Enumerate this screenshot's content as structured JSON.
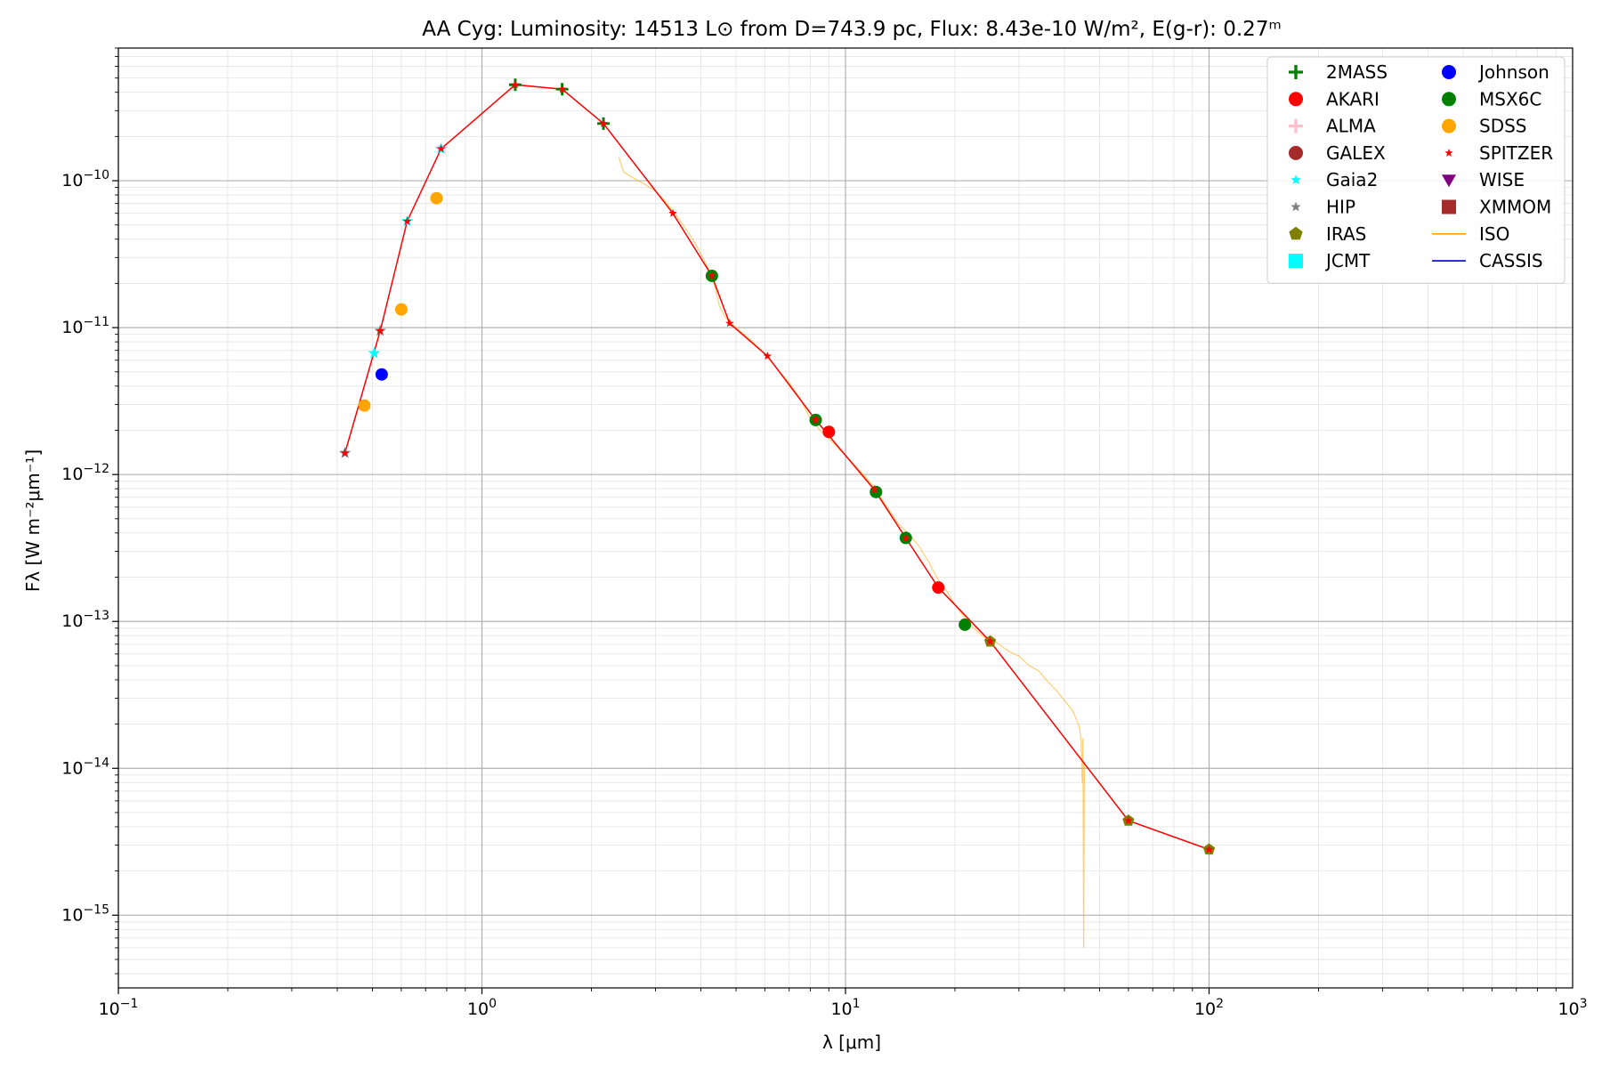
{
  "chart_data": {
    "type": "scatter",
    "title": "AA Cyg:  Luminosity: 14513 L⊙ from D=743.9 pc, Flux: 8.43e-10 W/m², E(g-r): 0.27ᵐ",
    "xlabel": "λ [μm]",
    "ylabel": "Fλ [W m⁻²μm⁻¹]",
    "xscale": "log",
    "yscale": "log",
    "xlim": [
      0.1,
      1000
    ],
    "ylim": [
      3.2e-16,
      8e-10
    ],
    "grid": true,
    "legend_position": "top-right",
    "legend_columns": 2,
    "x_ticks": [
      {
        "value": 0.1,
        "mant": "10",
        "exp": "−1"
      },
      {
        "value": 1,
        "mant": "10",
        "exp": "0"
      },
      {
        "value": 10,
        "mant": "10",
        "exp": "1"
      },
      {
        "value": 100,
        "mant": "10",
        "exp": "2"
      },
      {
        "value": 1000,
        "mant": "10",
        "exp": "3"
      }
    ],
    "y_ticks": [
      {
        "value": 1e-15,
        "mant": "10",
        "exp": "−15"
      },
      {
        "value": 1e-14,
        "mant": "10",
        "exp": "−14"
      },
      {
        "value": 1e-13,
        "mant": "10",
        "exp": "−13"
      },
      {
        "value": 1e-12,
        "mant": "10",
        "exp": "−12"
      },
      {
        "value": 1e-11,
        "mant": "10",
        "exp": "−11"
      },
      {
        "value": 1e-10,
        "mant": "10",
        "exp": "−10"
      }
    ],
    "series": [
      {
        "name": "2MASS",
        "marker": "plus",
        "color": "#008000",
        "points": [
          [
            1.235,
            4.5e-10
          ],
          [
            1.662,
            4.2e-10
          ],
          [
            2.159,
            2.45e-10
          ]
        ]
      },
      {
        "name": "AKARI",
        "marker": "circle",
        "color": "#ff0000",
        "points": [
          [
            9.0,
            1.95e-12
          ],
          [
            18.0,
            1.7e-13
          ]
        ]
      },
      {
        "name": "ALMA",
        "marker": "plus",
        "color": "#ffc0cb",
        "points": []
      },
      {
        "name": "GALEX",
        "marker": "circle",
        "color": "#a52a2a",
        "points": []
      },
      {
        "name": "Gaia2",
        "marker": "star",
        "color": "#00ffff",
        "points": [
          [
            0.505,
            6.7e-12
          ],
          [
            0.623,
            5.3e-11
          ],
          [
            0.772,
            1.65e-10
          ]
        ]
      },
      {
        "name": "HIP",
        "marker": "star",
        "color": "#808080",
        "points": [
          [
            0.42,
            1.4e-12
          ],
          [
            0.525,
            9.5e-12
          ]
        ]
      },
      {
        "name": "IRAS",
        "marker": "pentagon",
        "color": "#808000",
        "points": [
          [
            25,
            7.3e-14
          ],
          [
            60,
            4.4e-15
          ],
          [
            100,
            2.8e-15
          ]
        ]
      },
      {
        "name": "JCMT",
        "marker": "square",
        "color": "#00ffff",
        "points": []
      },
      {
        "name": "Johnson",
        "marker": "circle",
        "color": "#0000ff",
        "points": [
          [
            0.53,
            4.8e-12
          ]
        ]
      },
      {
        "name": "MSX6C",
        "marker": "circle",
        "color": "#008000",
        "points": [
          [
            4.29,
            2.25e-11
          ],
          [
            8.28,
            2.35e-12
          ],
          [
            12.13,
            7.6e-13
          ],
          [
            14.65,
            3.7e-13
          ],
          [
            21.3,
            9.5e-14
          ]
        ]
      },
      {
        "name": "SDSS",
        "marker": "circle",
        "color": "#ffa500",
        "points": [
          [
            0.475,
            2.95e-12
          ],
          [
            0.6,
            1.33e-11
          ],
          [
            0.75,
            7.6e-11
          ]
        ]
      },
      {
        "name": "SPITZER",
        "marker": "star",
        "color": "#ff0000",
        "points": [
          [
            0.42,
            1.4e-12
          ],
          [
            0.525,
            9.5e-12
          ],
          [
            0.623,
            5.3e-11
          ],
          [
            0.772,
            1.65e-10
          ],
          [
            1.235,
            4.5e-10
          ],
          [
            1.662,
            4.2e-10
          ],
          [
            2.159,
            2.45e-10
          ],
          [
            3.35,
            6e-11
          ],
          [
            4.29,
            2.25e-11
          ],
          [
            4.8,
            1.07e-11
          ],
          [
            6.1,
            6.4e-12
          ],
          [
            8.28,
            2.35e-12
          ],
          [
            12.0,
            7.9e-13
          ],
          [
            14.65,
            3.7e-13
          ],
          [
            18.0,
            1.7e-13
          ],
          [
            25,
            7.3e-14
          ],
          [
            60,
            4.4e-15
          ],
          [
            100,
            2.8e-15
          ]
        ]
      },
      {
        "name": "WISE",
        "marker": "triangle-down",
        "color": "#800080",
        "points": []
      },
      {
        "name": "XMMOM",
        "marker": "square",
        "color": "#a52a2a",
        "points": []
      },
      {
        "name": "ISO",
        "marker": "line",
        "color": "#ffa500",
        "points": [
          [
            2.38,
            1.45e-10
          ],
          [
            2.45,
            1.15e-10
          ],
          [
            2.6,
            1.05e-10
          ],
          [
            2.8,
            9.5e-11
          ],
          [
            3.0,
            8.5e-11
          ],
          [
            3.2,
            7.2e-11
          ],
          [
            3.5,
            5.4e-11
          ],
          [
            3.8,
            4e-11
          ],
          [
            4.0,
            3.2e-11
          ],
          [
            4.2,
            2.5e-11
          ],
          [
            4.35,
            2e-11
          ],
          [
            4.5,
            1.4e-11
          ],
          [
            4.7,
            1.15e-11
          ],
          [
            5.0,
            1e-11
          ],
          [
            5.5,
            8.2e-12
          ],
          [
            6.0,
            6.6e-12
          ],
          [
            6.5,
            5.2e-12
          ],
          [
            7.0,
            4.2e-12
          ],
          [
            7.5,
            3.3e-12
          ],
          [
            8.0,
            2.4e-12
          ],
          [
            8.5,
            2e-12
          ],
          [
            9.0,
            1.75e-12
          ],
          [
            10.0,
            1.35e-12
          ],
          [
            11.0,
            1.05e-12
          ],
          [
            12.0,
            8.2e-13
          ],
          [
            13.0,
            6e-13
          ],
          [
            14.0,
            4.6e-13
          ],
          [
            15.0,
            3.9e-13
          ],
          [
            16.0,
            3.2e-13
          ],
          [
            17.0,
            2.5e-13
          ],
          [
            18.0,
            1.9e-13
          ],
          [
            19.0,
            1.6e-13
          ],
          [
            20.0,
            1.3e-13
          ],
          [
            22.0,
            9.5e-14
          ],
          [
            24.0,
            7.8e-14
          ],
          [
            26.0,
            7.2e-14
          ],
          [
            28.0,
            6.3e-14
          ],
          [
            30.0,
            5.8e-14
          ],
          [
            32.0,
            5e-14
          ],
          [
            34.0,
            4.6e-14
          ],
          [
            36.0,
            3.9e-14
          ],
          [
            38.0,
            3.4e-14
          ],
          [
            40.0,
            2.9e-14
          ],
          [
            42.0,
            2.5e-14
          ],
          [
            43.0,
            2.2e-14
          ],
          [
            44.0,
            1.9e-14
          ],
          [
            44.5,
            1.5e-14
          ],
          [
            44.8,
            8e-15
          ],
          [
            45.0,
            1.6e-14
          ],
          [
            45.2,
            6e-16
          ],
          [
            45.4,
            1.1e-14
          ]
        ]
      },
      {
        "name": "CASSIS",
        "marker": "line",
        "color": "#0000cd",
        "points": []
      }
    ],
    "sed_line": {
      "color": "#ff0000",
      "points": [
        [
          0.42,
          1.4e-12
        ],
        [
          0.525,
          9.5e-12
        ],
        [
          0.623,
          5.3e-11
        ],
        [
          0.772,
          1.65e-10
        ],
        [
          1.235,
          4.5e-10
        ],
        [
          1.662,
          4.2e-10
        ],
        [
          2.159,
          2.45e-10
        ],
        [
          3.35,
          6e-11
        ],
        [
          4.29,
          2.25e-11
        ],
        [
          4.8,
          1.07e-11
        ],
        [
          6.1,
          6.4e-12
        ],
        [
          8.28,
          2.35e-12
        ],
        [
          12.0,
          7.9e-13
        ],
        [
          14.65,
          3.7e-13
        ],
        [
          18.0,
          1.7e-13
        ],
        [
          25,
          7.3e-14
        ],
        [
          60,
          4.4e-15
        ],
        [
          100,
          2.8e-15
        ]
      ]
    }
  }
}
